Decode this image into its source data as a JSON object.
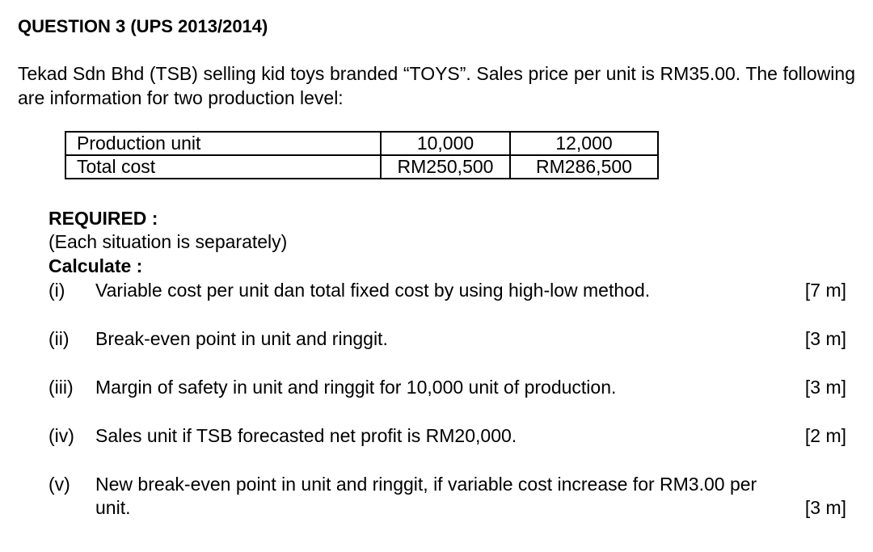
{
  "title": "QUESTION 3 (UPS 2013/2014)",
  "intro": "Tekad Sdn Bhd (TSB) selling kid toys branded “TOYS”. Sales price per unit is RM35.00. The following are information for two production level:",
  "table": {
    "rows": [
      {
        "label": "Production unit",
        "a": "10,000",
        "b": "12,000"
      },
      {
        "label": "Total cost",
        "a": "RM250,500",
        "b": "RM286,500"
      }
    ]
  },
  "required": "REQUIRED :",
  "note": "(Each situation is separately)",
  "calculate": "Calculate :",
  "items": [
    {
      "num": "(i)",
      "text": "Variable cost per unit dan total fixed cost by using high-low method.",
      "marks": "[7 m]"
    },
    {
      "num": "(ii)",
      "text": "Break-even point in unit and ringgit.",
      "marks": "[3 m]"
    },
    {
      "num": "(iii)",
      "text": "Margin of safety in unit and ringgit for 10,000 unit of production.",
      "marks": "[3 m]"
    },
    {
      "num": "(iv)",
      "text": "Sales unit if TSB forecasted net profit is RM20,000.",
      "marks": "[2 m]"
    },
    {
      "num": "(v)",
      "text": "New break-even point in unit and ringgit, if variable cost increase for RM3.00 per",
      "text2": "unit.",
      "marks": "[3 m]"
    }
  ]
}
